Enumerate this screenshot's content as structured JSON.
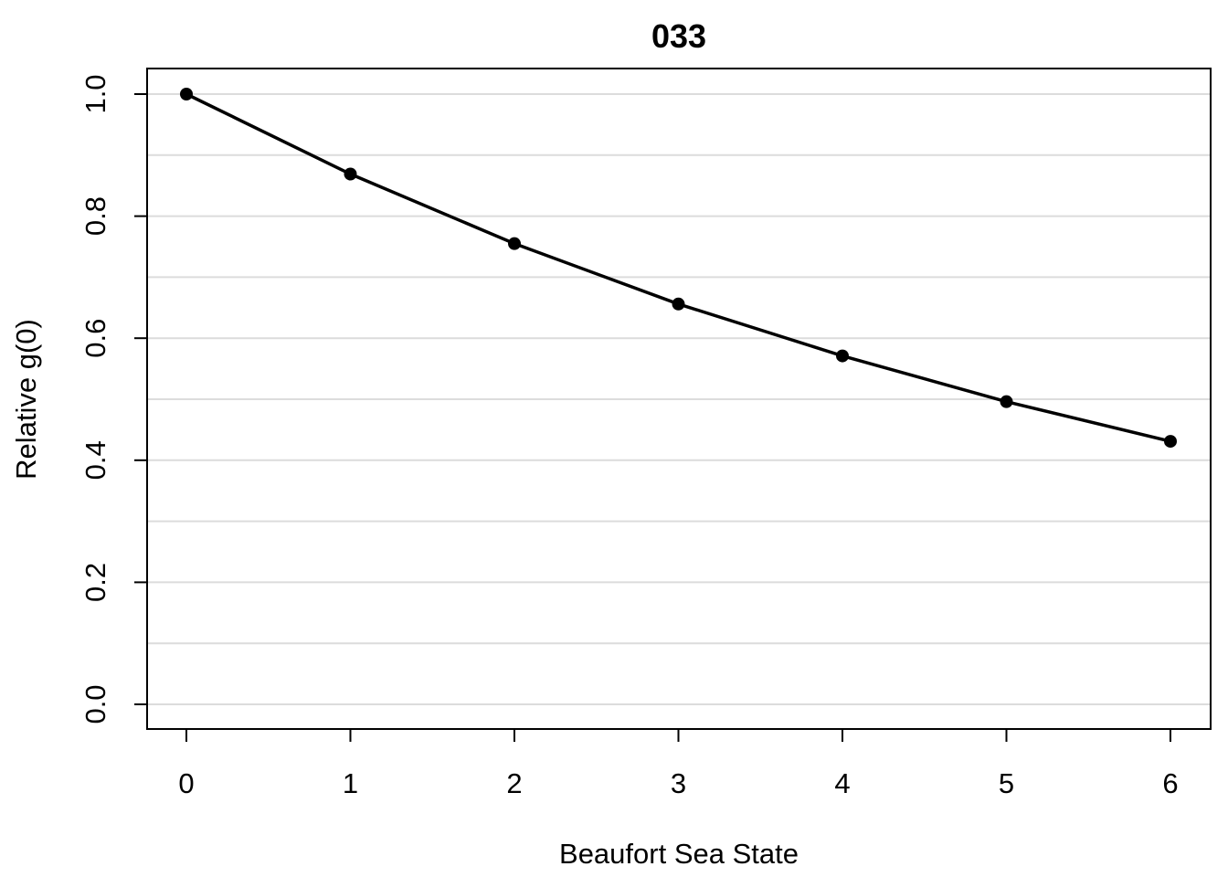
{
  "chart_data": {
    "type": "line",
    "title": "033",
    "xlabel": "Beaufort Sea State",
    "ylabel": "Relative g(0)",
    "x": [
      0,
      1,
      2,
      3,
      4,
      5,
      6
    ],
    "xticks": [
      "0",
      "1",
      "2",
      "3",
      "4",
      "5",
      "6"
    ],
    "yticks": [
      "0.0",
      "0.2",
      "0.4",
      "0.6",
      "0.8",
      "1.0"
    ],
    "ylim": [
      0,
      1
    ],
    "xlim": [
      0,
      6
    ],
    "grid": true,
    "grid_step": 0.1,
    "series": [
      {
        "values": [
          1.0,
          0.869,
          0.755,
          0.656,
          0.571,
          0.496,
          0.431
        ]
      }
    ]
  }
}
